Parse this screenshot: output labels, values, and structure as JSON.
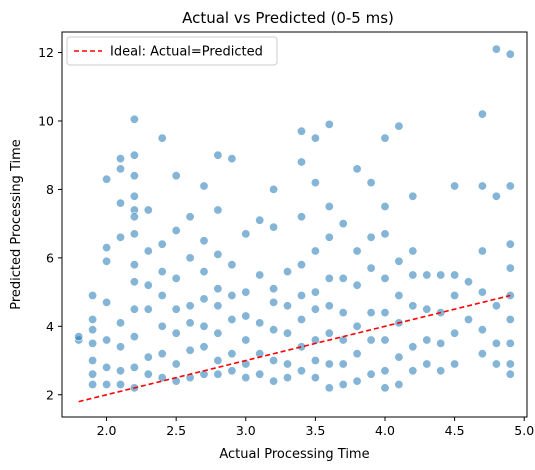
{
  "chart_data": {
    "type": "scatter",
    "title": "Actual vs Predicted (0-5 ms)",
    "xlabel": "Actual Processing Time",
    "ylabel": "Predicted Processing Time",
    "xlim": [
      1.68,
      5.02
    ],
    "ylim": [
      1.35,
      12.6
    ],
    "xticks": [
      2.0,
      2.5,
      3.0,
      3.5,
      4.0,
      4.5,
      5.0
    ],
    "yticks": [
      2,
      4,
      6,
      8,
      10,
      12
    ],
    "grid": false,
    "legend": {
      "position": "upper-left",
      "entries": [
        "Ideal: Actual=Predicted"
      ]
    },
    "colors": {
      "points": "#1f77b4",
      "ideal_line": "#ff0000"
    },
    "series": [
      {
        "type": "scatter",
        "points": [
          [
            1.8,
            3.6
          ],
          [
            1.8,
            3.7
          ],
          [
            1.9,
            4.9
          ],
          [
            1.9,
            4.2
          ],
          [
            1.9,
            3.9
          ],
          [
            1.9,
            3.5
          ],
          [
            1.9,
            3.0
          ],
          [
            1.9,
            2.6
          ],
          [
            1.9,
            2.3
          ],
          [
            2.0,
            6.3
          ],
          [
            2.0,
            5.9
          ],
          [
            2.0,
            4.7
          ],
          [
            2.0,
            3.6
          ],
          [
            2.0,
            2.8
          ],
          [
            2.0,
            2.3
          ],
          [
            2.0,
            8.3
          ],
          [
            2.1,
            8.9
          ],
          [
            2.1,
            8.6
          ],
          [
            2.1,
            7.6
          ],
          [
            2.1,
            6.6
          ],
          [
            2.1,
            4.1
          ],
          [
            2.1,
            3.4
          ],
          [
            2.1,
            2.7
          ],
          [
            2.1,
            2.3
          ],
          [
            2.2,
            10.05
          ],
          [
            2.2,
            9.0
          ],
          [
            2.2,
            8.4
          ],
          [
            2.2,
            7.8
          ],
          [
            2.2,
            7.4
          ],
          [
            2.2,
            7.2
          ],
          [
            2.2,
            6.7
          ],
          [
            2.2,
            5.8
          ],
          [
            2.2,
            5.3
          ],
          [
            2.2,
            4.5
          ],
          [
            2.2,
            3.7
          ],
          [
            2.2,
            2.8
          ],
          [
            2.2,
            2.2
          ],
          [
            2.3,
            7.4
          ],
          [
            2.3,
            6.2
          ],
          [
            2.3,
            5.2
          ],
          [
            2.3,
            4.5
          ],
          [
            2.3,
            3.1
          ],
          [
            2.3,
            2.6
          ],
          [
            2.4,
            9.5
          ],
          [
            2.4,
            6.4
          ],
          [
            2.4,
            5.6
          ],
          [
            2.4,
            4.9
          ],
          [
            2.4,
            4.0
          ],
          [
            2.4,
            3.2
          ],
          [
            2.4,
            2.5
          ],
          [
            2.5,
            8.4
          ],
          [
            2.5,
            6.8
          ],
          [
            2.5,
            5.4
          ],
          [
            2.5,
            4.5
          ],
          [
            2.5,
            3.8
          ],
          [
            2.5,
            2.9
          ],
          [
            2.5,
            2.4
          ],
          [
            2.6,
            7.2
          ],
          [
            2.6,
            6.0
          ],
          [
            2.6,
            4.6
          ],
          [
            2.6,
            4.1
          ],
          [
            2.6,
            3.3
          ],
          [
            2.6,
            2.5
          ],
          [
            2.7,
            8.1
          ],
          [
            2.7,
            6.5
          ],
          [
            2.7,
            5.6
          ],
          [
            2.7,
            4.8
          ],
          [
            2.7,
            4.0
          ],
          [
            2.7,
            3.4
          ],
          [
            2.7,
            2.6
          ],
          [
            2.8,
            9.0
          ],
          [
            2.8,
            7.4
          ],
          [
            2.8,
            6.1
          ],
          [
            2.8,
            5.1
          ],
          [
            2.8,
            4.6
          ],
          [
            2.8,
            3.8
          ],
          [
            2.8,
            3.0
          ],
          [
            2.8,
            2.6
          ],
          [
            2.9,
            8.9
          ],
          [
            2.9,
            5.8
          ],
          [
            2.9,
            4.9
          ],
          [
            2.9,
            4.2
          ],
          [
            2.9,
            3.2
          ],
          [
            2.9,
            2.7
          ],
          [
            3.0,
            6.7
          ],
          [
            3.0,
            5.0
          ],
          [
            3.0,
            4.3
          ],
          [
            3.0,
            3.6
          ],
          [
            3.0,
            2.9
          ],
          [
            3.0,
            2.5
          ],
          [
            3.1,
            7.1
          ],
          [
            3.1,
            5.5
          ],
          [
            3.1,
            4.1
          ],
          [
            3.1,
            3.2
          ],
          [
            3.1,
            2.6
          ],
          [
            3.2,
            8.0
          ],
          [
            3.2,
            6.9
          ],
          [
            3.2,
            5.1
          ],
          [
            3.2,
            4.7
          ],
          [
            3.2,
            3.9
          ],
          [
            3.2,
            3.0
          ],
          [
            3.2,
            2.4
          ],
          [
            3.3,
            5.6
          ],
          [
            3.3,
            4.6
          ],
          [
            3.3,
            3.8
          ],
          [
            3.3,
            2.9
          ],
          [
            3.3,
            2.5
          ],
          [
            3.4,
            9.7
          ],
          [
            3.4,
            8.8
          ],
          [
            3.4,
            7.2
          ],
          [
            3.4,
            5.8
          ],
          [
            3.4,
            4.9
          ],
          [
            3.4,
            4.2
          ],
          [
            3.4,
            3.4
          ],
          [
            3.4,
            2.7
          ],
          [
            3.5,
            9.5
          ],
          [
            3.5,
            8.2
          ],
          [
            3.5,
            6.2
          ],
          [
            3.5,
            5.0
          ],
          [
            3.5,
            4.5
          ],
          [
            3.5,
            3.6
          ],
          [
            3.5,
            3.0
          ],
          [
            3.5,
            2.5
          ],
          [
            3.6,
            9.9
          ],
          [
            3.6,
            7.5
          ],
          [
            3.6,
            6.6
          ],
          [
            3.6,
            5.4
          ],
          [
            3.6,
            4.6
          ],
          [
            3.6,
            3.8
          ],
          [
            3.6,
            2.9
          ],
          [
            3.6,
            2.2
          ],
          [
            3.7,
            7.0
          ],
          [
            3.7,
            5.4
          ],
          [
            3.7,
            4.4
          ],
          [
            3.7,
            3.6
          ],
          [
            3.7,
            2.9
          ],
          [
            3.7,
            2.3
          ],
          [
            3.8,
            8.6
          ],
          [
            3.8,
            6.2
          ],
          [
            3.8,
            5.2
          ],
          [
            3.8,
            4.0
          ],
          [
            3.8,
            3.2
          ],
          [
            3.8,
            2.4
          ],
          [
            3.9,
            8.2
          ],
          [
            3.9,
            6.6
          ],
          [
            3.9,
            5.7
          ],
          [
            3.9,
            4.4
          ],
          [
            3.9,
            3.6
          ],
          [
            3.9,
            2.6
          ],
          [
            4.0,
            9.5
          ],
          [
            4.0,
            7.5
          ],
          [
            4.0,
            6.7
          ],
          [
            4.0,
            5.4
          ],
          [
            4.0,
            4.4
          ],
          [
            4.0,
            3.6
          ],
          [
            4.0,
            2.7
          ],
          [
            4.0,
            2.2
          ],
          [
            4.1,
            9.85
          ],
          [
            4.1,
            5.9
          ],
          [
            4.1,
            4.9
          ],
          [
            4.1,
            4.1
          ],
          [
            4.1,
            3.1
          ],
          [
            4.1,
            2.3
          ],
          [
            4.2,
            7.8
          ],
          [
            4.2,
            6.2
          ],
          [
            4.2,
            5.5
          ],
          [
            4.2,
            4.6
          ],
          [
            4.2,
            3.4
          ],
          [
            4.2,
            2.7
          ],
          [
            4.3,
            5.5
          ],
          [
            4.3,
            4.5
          ],
          [
            4.3,
            3.6
          ],
          [
            4.3,
            2.9
          ],
          [
            4.4,
            5.5
          ],
          [
            4.4,
            4.4
          ],
          [
            4.4,
            3.5
          ],
          [
            4.4,
            2.7
          ],
          [
            4.5,
            8.1
          ],
          [
            4.5,
            5.5
          ],
          [
            4.5,
            4.9
          ],
          [
            4.5,
            3.8
          ],
          [
            4.5,
            2.9
          ],
          [
            4.6,
            5.3
          ],
          [
            4.6,
            4.2
          ],
          [
            4.7,
            10.2
          ],
          [
            4.7,
            8.1
          ],
          [
            4.7,
            6.2
          ],
          [
            4.7,
            5.0
          ],
          [
            4.7,
            3.9
          ],
          [
            4.7,
            3.2
          ],
          [
            4.8,
            12.1
          ],
          [
            4.8,
            7.8
          ],
          [
            4.8,
            4.6
          ],
          [
            4.8,
            3.5
          ],
          [
            4.8,
            2.9
          ],
          [
            4.9,
            11.95
          ],
          [
            4.9,
            8.1
          ],
          [
            4.9,
            6.4
          ],
          [
            4.9,
            5.7
          ],
          [
            4.9,
            4.9
          ],
          [
            4.9,
            4.2
          ],
          [
            4.9,
            3.5
          ],
          [
            4.9,
            2.9
          ],
          [
            4.9,
            2.6
          ]
        ]
      },
      {
        "name": "Ideal: Actual=Predicted",
        "type": "line",
        "style": "dashed",
        "x": [
          1.8,
          4.9
        ],
        "y": [
          1.8,
          4.9
        ]
      }
    ]
  }
}
